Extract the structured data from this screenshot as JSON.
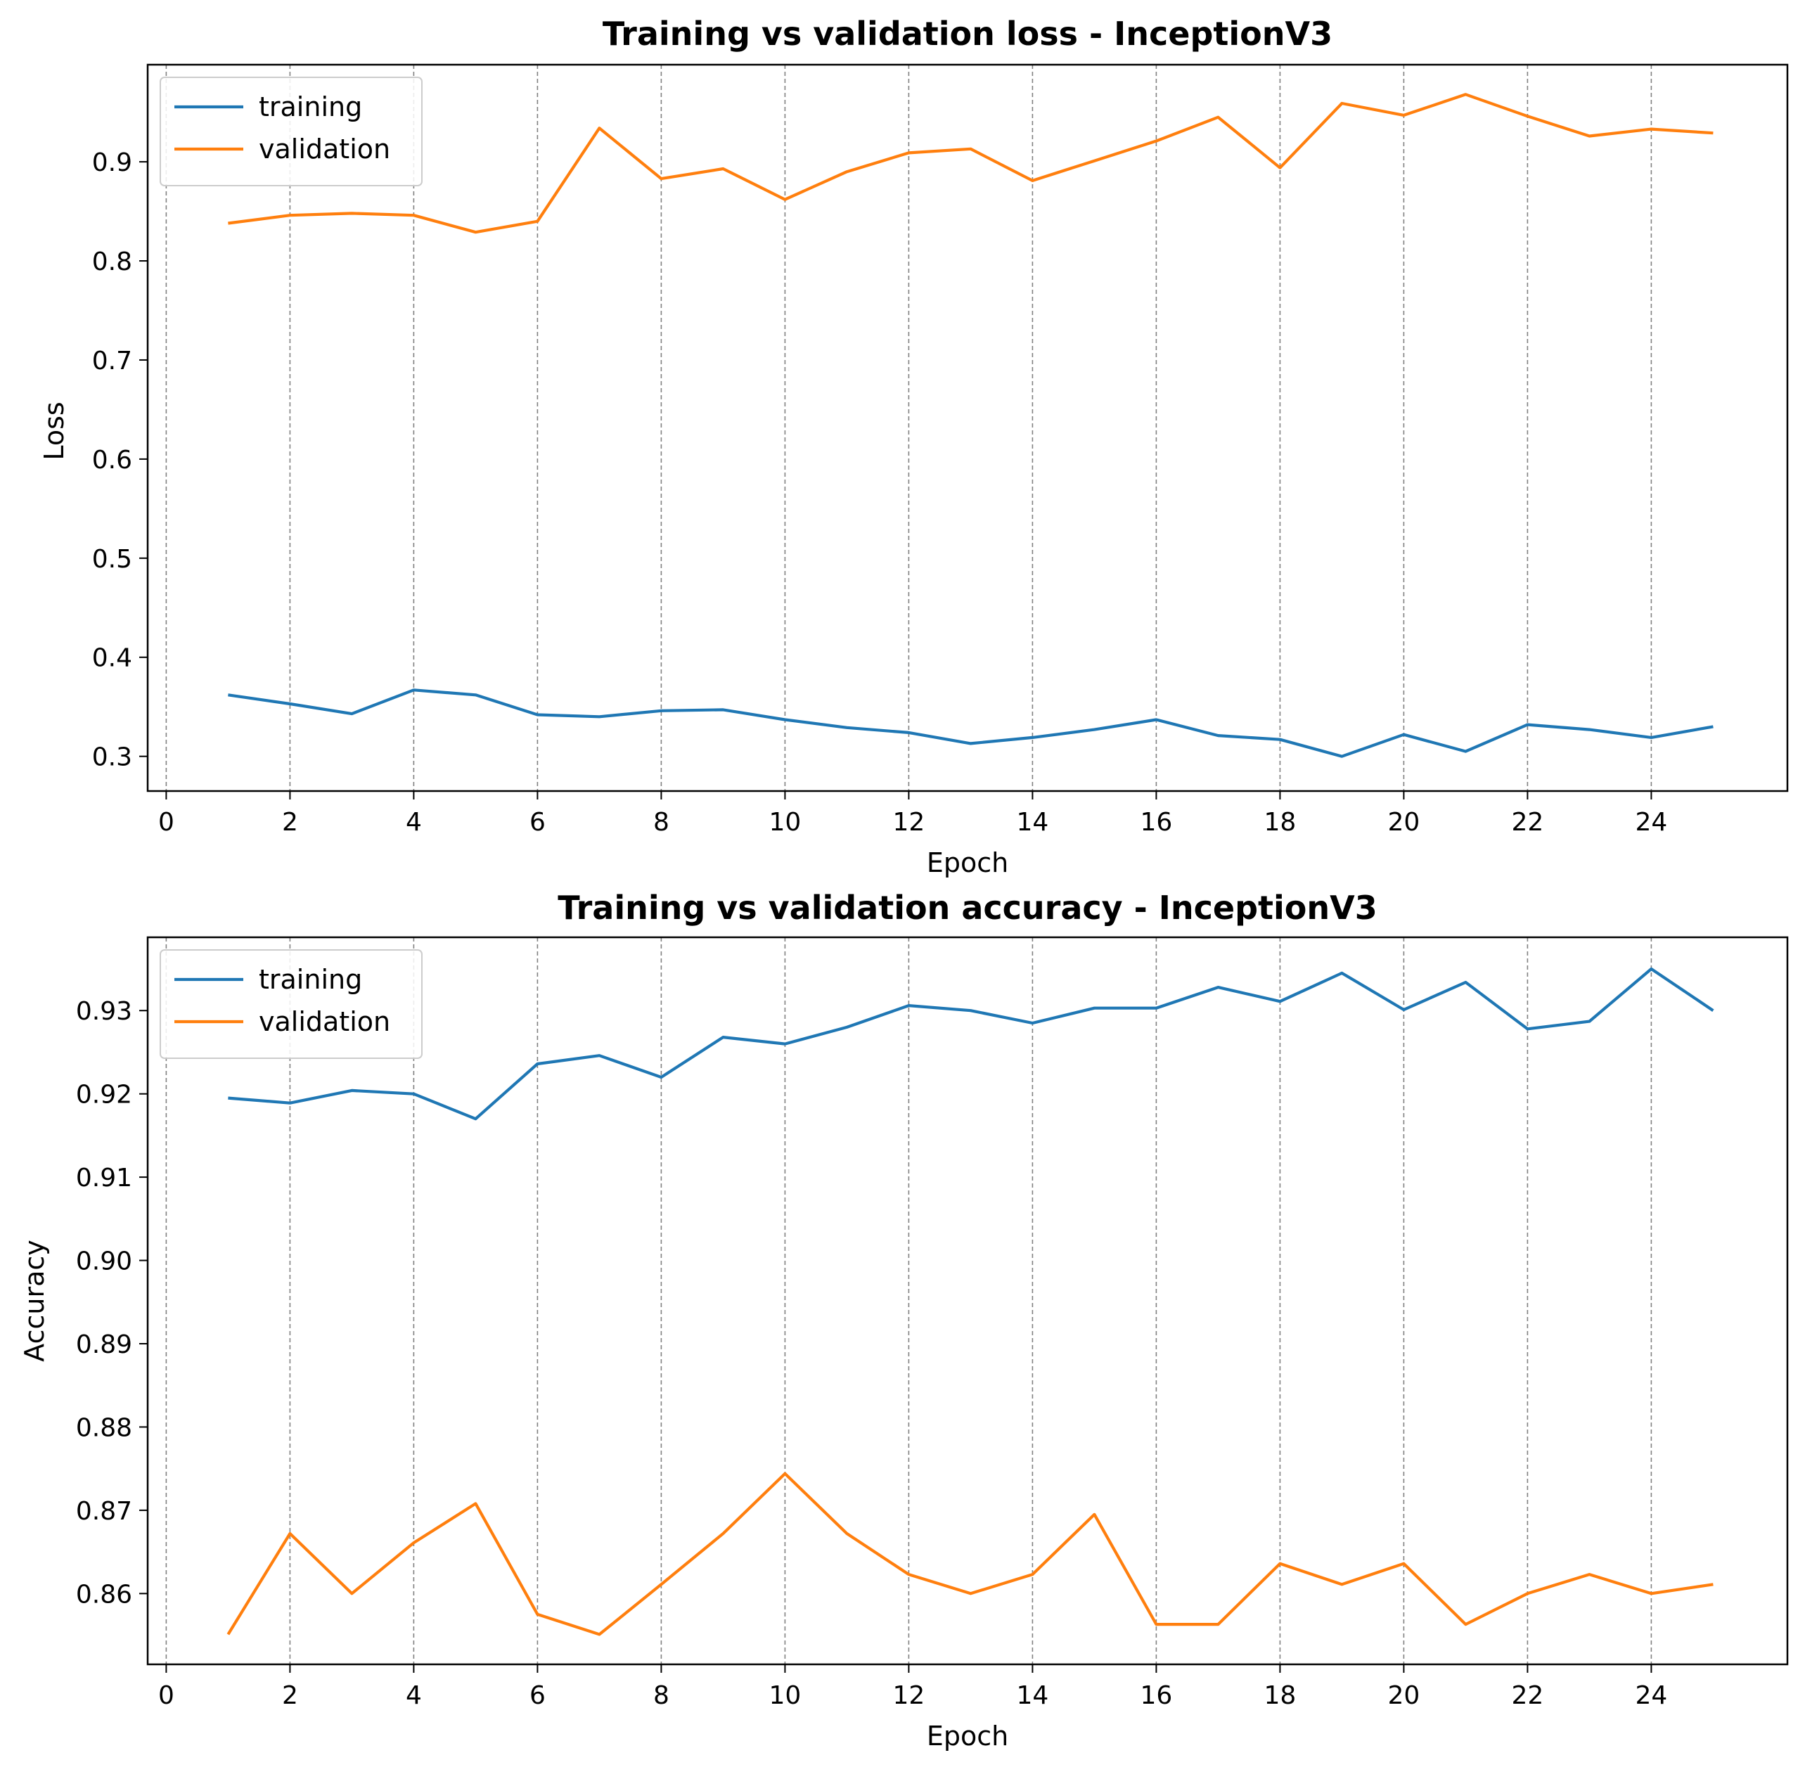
{
  "chart_data": [
    {
      "type": "line",
      "title": "Training vs validation loss - InceptionV3",
      "xlabel": "Epoch",
      "ylabel": "Loss",
      "xlim": [
        -0.3,
        26.2
      ],
      "ylim": [
        0.265,
        0.998
      ],
      "xticks": [
        0,
        2,
        4,
        6,
        8,
        10,
        12,
        14,
        16,
        18,
        20,
        22,
        24
      ],
      "yticks": [
        0.3,
        0.4,
        0.5,
        0.6,
        0.7,
        0.8,
        0.9
      ],
      "ytick_labels": [
        "0.3",
        "0.4",
        "0.5",
        "0.6",
        "0.7",
        "0.8",
        "0.9"
      ],
      "grid": "vertical dashed at x ticks",
      "legend_position": "upper-left",
      "x": [
        1,
        2,
        3,
        4,
        5,
        6,
        7,
        8,
        9,
        10,
        11,
        12,
        13,
        14,
        15,
        16,
        17,
        18,
        19,
        20,
        21,
        22,
        23,
        24,
        25
      ],
      "series": [
        {
          "name": "training",
          "color": "#1f77b4",
          "values": [
            0.362,
            0.353,
            0.343,
            0.367,
            0.362,
            0.342,
            0.34,
            0.346,
            0.347,
            0.337,
            0.329,
            0.324,
            0.313,
            0.319,
            0.327,
            0.337,
            0.321,
            0.317,
            0.3,
            0.322,
            0.305,
            0.332,
            0.327,
            0.319,
            0.33
          ]
        },
        {
          "name": "validation",
          "color": "#ff7f0e",
          "values": [
            0.838,
            0.846,
            0.848,
            0.846,
            0.829,
            0.84,
            0.934,
            0.883,
            0.893,
            0.862,
            0.89,
            0.909,
            0.913,
            0.881,
            0.901,
            0.921,
            0.945,
            0.894,
            0.959,
            0.947,
            0.968,
            0.946,
            0.926,
            0.933,
            0.929
          ]
        }
      ]
    },
    {
      "type": "line",
      "title": "Training vs validation accuracy - InceptionV3",
      "xlabel": "Epoch",
      "ylabel": "Accuracy",
      "xlim": [
        -0.3,
        26.2
      ],
      "ylim": [
        0.8515,
        0.9388
      ],
      "xticks": [
        0,
        2,
        4,
        6,
        8,
        10,
        12,
        14,
        16,
        18,
        20,
        22,
        24
      ],
      "yticks": [
        0.86,
        0.87,
        0.88,
        0.89,
        0.9,
        0.91,
        0.92,
        0.93
      ],
      "ytick_labels": [
        "0.86",
        "0.87",
        "0.88",
        "0.89",
        "0.90",
        "0.91",
        "0.92",
        "0.93"
      ],
      "grid": "vertical dashed at x ticks",
      "legend_position": "upper-left",
      "x": [
        1,
        2,
        3,
        4,
        5,
        6,
        7,
        8,
        9,
        10,
        11,
        12,
        13,
        14,
        15,
        16,
        17,
        18,
        19,
        20,
        21,
        22,
        23,
        24,
        25
      ],
      "series": [
        {
          "name": "training",
          "color": "#1f77b4",
          "values": [
            0.9195,
            0.9189,
            0.9204,
            0.92,
            0.917,
            0.9236,
            0.9246,
            0.922,
            0.9268,
            0.926,
            0.928,
            0.9306,
            0.93,
            0.9285,
            0.9303,
            0.9303,
            0.9328,
            0.9311,
            0.9345,
            0.9301,
            0.9334,
            0.9278,
            0.9287,
            0.935,
            0.93
          ]
        },
        {
          "name": "validation",
          "color": "#ff7f0e",
          "values": [
            0.8551,
            0.8672,
            0.86,
            0.8661,
            0.8708,
            0.8575,
            0.8551,
            0.8611,
            0.8672,
            0.8744,
            0.8672,
            0.8623,
            0.86,
            0.8623,
            0.8695,
            0.8563,
            0.8563,
            0.8636,
            0.8611,
            0.8636,
            0.8563,
            0.86,
            0.8623,
            0.86,
            0.8611
          ]
        }
      ]
    }
  ]
}
